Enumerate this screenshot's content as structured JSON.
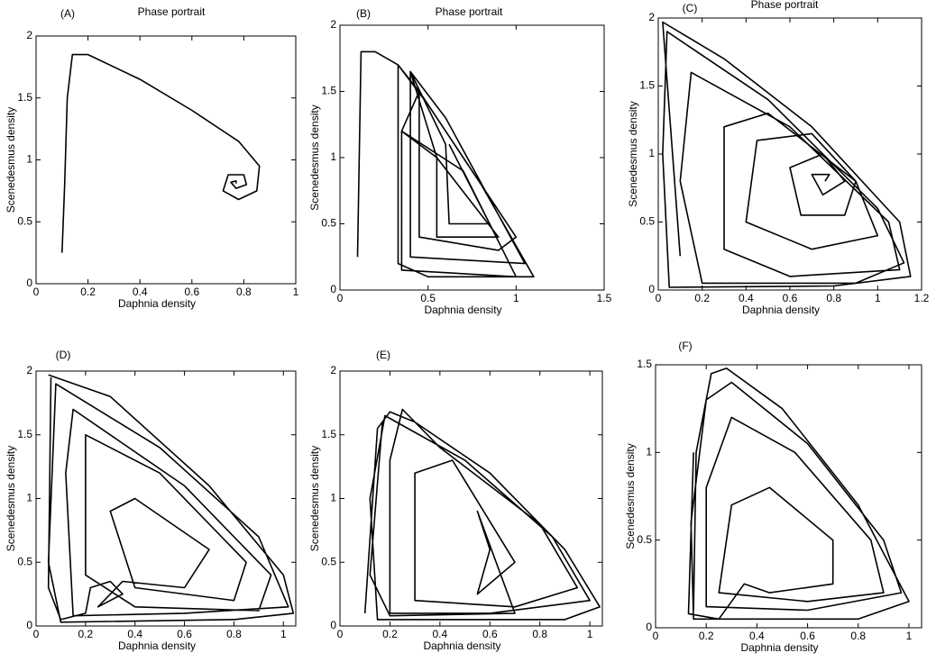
{
  "chart_data": [
    {
      "type": "line",
      "label": "(A)",
      "title": "Phase portrait",
      "xlabel": "Daphnia density",
      "ylabel": "Scenedesmus density",
      "color": "#000000",
      "xlim": [
        0,
        1
      ],
      "xticks": [
        0,
        0.2,
        0.4,
        0.6,
        0.8,
        1
      ],
      "ylim": [
        0,
        2
      ],
      "yticks": [
        0,
        0.5,
        1,
        1.5,
        2
      ],
      "x": [
        0.1,
        0.11,
        0.12,
        0.14,
        0.2,
        0.4,
        0.6,
        0.78,
        0.86,
        0.85,
        0.78,
        0.72,
        0.74,
        0.8,
        0.81,
        0.77,
        0.75,
        0.77,
        0.77
      ],
      "y": [
        0.25,
        0.8,
        1.5,
        1.85,
        1.85,
        1.65,
        1.4,
        1.15,
        0.95,
        0.75,
        0.68,
        0.75,
        0.88,
        0.88,
        0.8,
        0.77,
        0.82,
        0.83,
        0.81
      ]
    },
    {
      "type": "line",
      "label": "(B)",
      "title": "Phase portrait",
      "xlabel": "Daphnia density",
      "ylabel": "Scenedesmus density",
      "color": "#000000",
      "xlim": [
        0,
        1.5
      ],
      "xticks": [
        0,
        0.5,
        1,
        1.5
      ],
      "ylim": [
        0,
        2
      ],
      "yticks": [
        0,
        0.5,
        1,
        1.5,
        2
      ],
      "x": [
        0.1,
        0.12,
        0.2,
        0.33,
        0.33,
        0.5,
        1.1,
        0.8,
        0.5,
        0.33,
        0.45,
        0.45,
        0.9,
        1.0,
        0.7,
        0.45,
        0.35,
        0.35,
        1.0,
        0.7,
        0.35,
        0.55,
        0.55,
        0.9,
        0.55,
        0.4,
        0.4,
        1.05,
        0.6,
        0.4,
        0.6,
        0.62,
        0.85,
        0.62
      ],
      "y": [
        0.25,
        1.8,
        1.8,
        1.7,
        0.2,
        0.1,
        0.1,
        0.8,
        1.4,
        1.7,
        1.5,
        0.4,
        0.3,
        0.4,
        1.0,
        1.5,
        1.2,
        0.15,
        0.1,
        0.9,
        1.2,
        1.0,
        0.4,
        0.4,
        1.0,
        1.65,
        0.25,
        0.2,
        1.3,
        1.65,
        1.1,
        0.5,
        0.5,
        1.1
      ]
    },
    {
      "type": "line",
      "label": "(C)",
      "title": "Phase portrait",
      "xlabel": "Daphnia density",
      "ylabel": "Scenedesmus density",
      "color": "#000000",
      "xlim": [
        0,
        1.2
      ],
      "xticks": [
        0,
        0.2,
        0.4,
        0.6,
        0.8,
        1,
        1.2
      ],
      "ylim": [
        0,
        2
      ],
      "yticks": [
        0,
        0.5,
        1,
        1.5,
        2
      ],
      "x": [
        0.1,
        0.02,
        0.3,
        0.7,
        1.1,
        1.15,
        0.8,
        0.05,
        0.02,
        0.04,
        0.5,
        1.0,
        1.12,
        0.9,
        0.2,
        0.1,
        0.15,
        0.6,
        1.05,
        1.1,
        0.6,
        0.3,
        0.3,
        0.5,
        0.9,
        1.0,
        0.7,
        0.4,
        0.45,
        0.7,
        0.9,
        0.85,
        0.65,
        0.6,
        0.75,
        0.85,
        0.75,
        0.7,
        0.78,
        0.76
      ],
      "y": [
        0.25,
        1.97,
        1.7,
        1.2,
        0.5,
        0.1,
        0.03,
        0.02,
        1.0,
        1.9,
        1.4,
        0.6,
        0.2,
        0.05,
        0.05,
        0.8,
        1.6,
        1.2,
        0.5,
        0.15,
        0.1,
        0.3,
        1.2,
        1.3,
        0.8,
        0.4,
        0.3,
        0.5,
        1.1,
        1.15,
        0.8,
        0.55,
        0.55,
        0.9,
        1.0,
        0.8,
        0.7,
        0.85,
        0.85,
        0.8
      ]
    },
    {
      "type": "line",
      "label": "(D)",
      "xlabel": "Daphnia density",
      "ylabel": "Scenedesmus density",
      "color": "#000000",
      "xlim": [
        0,
        1.05
      ],
      "xticks": [
        0,
        0.2,
        0.4,
        0.6,
        0.8,
        1
      ],
      "ylim": [
        0,
        2
      ],
      "yticks": [
        0,
        0.5,
        1,
        1.5,
        2
      ],
      "x": [
        0.05,
        0.3,
        0.7,
        1.0,
        1.04,
        0.8,
        0.1,
        0.05,
        0.08,
        0.5,
        0.9,
        1.02,
        0.6,
        0.15,
        0.12,
        0.15,
        0.6,
        0.95,
        0.9,
        0.4,
        0.2,
        0.2,
        0.5,
        0.85,
        0.8,
        0.4,
        0.3,
        0.4,
        0.7,
        0.6,
        0.35,
        0.25,
        0.35,
        0.3,
        0.22,
        0.2,
        0.1,
        0.05,
        0.06
      ],
      "y": [
        1.97,
        1.8,
        1.1,
        0.4,
        0.1,
        0.05,
        0.03,
        0.5,
        1.9,
        1.4,
        0.7,
        0.15,
        0.1,
        0.08,
        1.2,
        1.7,
        1.1,
        0.4,
        0.12,
        0.15,
        0.4,
        1.5,
        1.2,
        0.5,
        0.2,
        0.3,
        0.9,
        1.0,
        0.6,
        0.3,
        0.35,
        0.15,
        0.25,
        0.35,
        0.3,
        0.1,
        0.05,
        0.3,
        1.95
      ]
    },
    {
      "type": "line",
      "label": "(E)",
      "xlabel": "Daphnia density",
      "ylabel": "Scenedesmus density",
      "color": "#000000",
      "xlim": [
        0,
        1.05
      ],
      "xticks": [
        0,
        0.2,
        0.4,
        0.6,
        0.8,
        1
      ],
      "ylim": [
        0,
        2
      ],
      "yticks": [
        0,
        0.5,
        1,
        1.5,
        2
      ],
      "x": [
        0.1,
        0.15,
        0.2,
        0.3,
        0.6,
        0.9,
        1.04,
        0.9,
        0.15,
        0.12,
        0.18,
        0.5,
        0.85,
        1.0,
        0.6,
        0.2,
        0.2,
        0.25,
        0.4,
        0.8,
        0.95,
        0.7,
        0.3,
        0.3,
        0.45,
        0.7,
        0.55,
        0.6,
        0.55,
        0.7,
        0.2,
        0.12,
        0.17
      ],
      "y": [
        0.1,
        1.55,
        1.68,
        1.6,
        1.2,
        0.6,
        0.15,
        0.05,
        0.05,
        1.0,
        1.65,
        1.3,
        0.7,
        0.2,
        0.1,
        0.1,
        1.3,
        1.7,
        1.4,
        0.8,
        0.3,
        0.15,
        0.2,
        1.2,
        1.3,
        0.5,
        0.25,
        0.6,
        0.9,
        0.1,
        0.08,
        0.4,
        1.6
      ]
    },
    {
      "type": "line",
      "label": "(F)",
      "xlabel": "Daphnia density",
      "ylabel": "Scenedesmus density",
      "color": "#000000",
      "xlim": [
        0,
        1.05
      ],
      "xticks": [
        0,
        0.2,
        0.4,
        0.6,
        0.8,
        1
      ],
      "ylim": [
        0,
        1.5
      ],
      "yticks": [
        0,
        0.5,
        1,
        1.5
      ],
      "x": [
        0.15,
        0.16,
        0.22,
        0.28,
        0.5,
        0.8,
        1.0,
        0.8,
        0.15,
        0.14,
        0.2,
        0.3,
        0.6,
        0.9,
        0.97,
        0.6,
        0.2,
        0.2,
        0.3,
        0.55,
        0.85,
        0.9,
        0.6,
        0.25,
        0.3,
        0.45,
        0.7,
        0.7,
        0.45,
        0.35,
        0.3,
        0.25,
        0.13,
        0.15
      ],
      "y": [
        0.1,
        1.0,
        1.45,
        1.48,
        1.25,
        0.7,
        0.15,
        0.05,
        0.05,
        0.6,
        1.3,
        1.4,
        1.05,
        0.5,
        0.2,
        0.1,
        0.12,
        0.8,
        1.2,
        1.0,
        0.5,
        0.2,
        0.15,
        0.2,
        0.7,
        0.8,
        0.5,
        0.25,
        0.2,
        0.25,
        0.15,
        0.05,
        0.08,
        1.0
      ]
    }
  ]
}
